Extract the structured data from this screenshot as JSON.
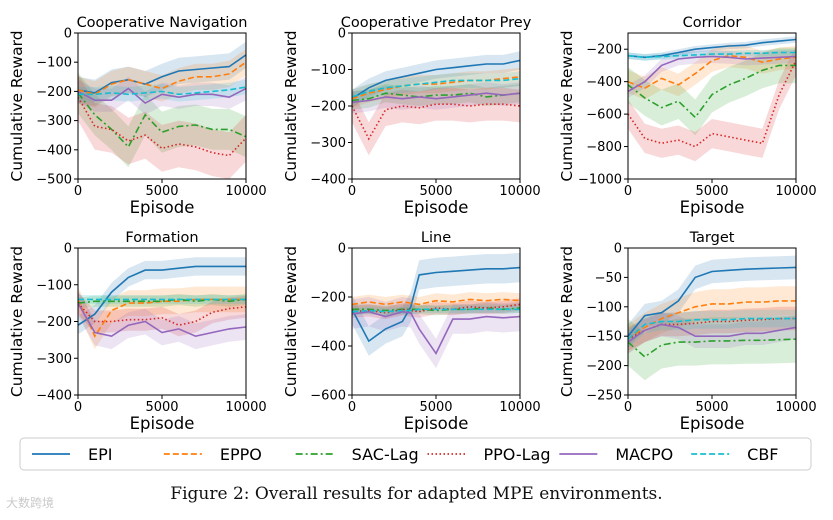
{
  "caption": "Figure 2: Overall results for adapted MPE environments.",
  "watermark": "大数跨境",
  "legend": {
    "entries": [
      {
        "name": "EPI",
        "color": "#1f77b4",
        "dash": "solid"
      },
      {
        "name": "EPPO",
        "color": "#ff7f0e",
        "dash": "dashed"
      },
      {
        "name": "SAC-Lag",
        "color": "#2ca02c",
        "dash": "dashdot"
      },
      {
        "name": "PPO-Lag",
        "color": "#d62728",
        "dash": "dotted"
      },
      {
        "name": "MACPO",
        "color": "#9467bd",
        "dash": "solid"
      },
      {
        "name": "CBF",
        "color": "#17becf",
        "dash": "dashed"
      }
    ]
  },
  "chart_data": [
    {
      "type": "line",
      "title": "Cooperative Navigation",
      "xlabel": "Episode",
      "ylabel": "Cumulative Reward",
      "xlim": [
        0,
        10000
      ],
      "ylim": [
        -500,
        0
      ],
      "xticks": [
        0,
        5000,
        10000
      ],
      "yticks": [
        -500,
        -400,
        -300,
        -200,
        -100,
        0
      ],
      "x": [
        0,
        1000,
        2000,
        3000,
        4000,
        5000,
        6000,
        7000,
        8000,
        9000,
        10000
      ],
      "series": [
        {
          "name": "EPI",
          "values": [
            -195,
            -205,
            -170,
            -160,
            -175,
            -150,
            -130,
            -125,
            -120,
            -115,
            -75
          ],
          "spread": 45
        },
        {
          "name": "EPPO",
          "values": [
            -195,
            -210,
            -175,
            -160,
            -175,
            -190,
            -165,
            -150,
            -150,
            -140,
            -100
          ],
          "spread": 45
        },
        {
          "name": "SAC-Lag",
          "values": [
            -205,
            -280,
            -330,
            -390,
            -280,
            -340,
            -320,
            -315,
            -330,
            -330,
            -355
          ],
          "spread": 70
        },
        {
          "name": "PPO-Lag",
          "values": [
            -220,
            -320,
            -330,
            -370,
            -350,
            -395,
            -380,
            -390,
            -410,
            -420,
            -360
          ],
          "spread": 80
        },
        {
          "name": "MACPO",
          "values": [
            -200,
            -230,
            -230,
            -190,
            -240,
            -210,
            -220,
            -210,
            -210,
            -220,
            -190
          ],
          "spread": 40
        },
        {
          "name": "CBF",
          "values": [
            -210,
            -210,
            -205,
            -210,
            -205,
            -200,
            -210,
            -205,
            -200,
            -195,
            -185
          ],
          "spread": 25
        }
      ]
    },
    {
      "type": "line",
      "title": "Cooperative Predator Prey",
      "xlabel": "Episode",
      "ylabel": "Cumulative Reward",
      "xlim": [
        0,
        10000
      ],
      "ylim": [
        -400,
        0
      ],
      "xticks": [
        0,
        5000,
        10000
      ],
      "yticks": [
        -400,
        -300,
        -200,
        -100,
        0
      ],
      "x": [
        0,
        1000,
        2000,
        3000,
        4000,
        5000,
        6000,
        7000,
        8000,
        9000,
        10000
      ],
      "series": [
        {
          "name": "EPI",
          "values": [
            -180,
            -150,
            -130,
            -120,
            -110,
            -100,
            -95,
            -90,
            -85,
            -85,
            -75
          ],
          "spread": 25
        },
        {
          "name": "EPPO",
          "values": [
            -180,
            -165,
            -155,
            -145,
            -140,
            -140,
            -135,
            -130,
            -130,
            -125,
            -120
          ],
          "spread": 25
        },
        {
          "name": "SAC-Lag",
          "values": [
            -185,
            -180,
            -165,
            -170,
            -175,
            -170,
            -170,
            -165,
            -175,
            -170,
            -165
          ],
          "spread": 25
        },
        {
          "name": "PPO-Lag",
          "values": [
            -200,
            -290,
            -210,
            -200,
            -205,
            -195,
            -195,
            -200,
            -195,
            -195,
            -200
          ],
          "spread": 45
        },
        {
          "name": "MACPO",
          "values": [
            -190,
            -185,
            -175,
            -180,
            -175,
            -180,
            -175,
            -170,
            -165,
            -170,
            -165
          ],
          "spread": 30
        },
        {
          "name": "CBF",
          "values": [
            -175,
            -160,
            -150,
            -145,
            -140,
            -135,
            -130,
            -130,
            -130,
            -130,
            -125
          ],
          "spread": 20
        }
      ]
    },
    {
      "type": "line",
      "title": "Corridor",
      "xlabel": "Episode",
      "ylabel": "Cumulative Reward",
      "xlim": [
        0,
        10000
      ],
      "ylim": [
        -1000,
        -100
      ],
      "xticks": [
        0,
        5000,
        10000
      ],
      "yticks": [
        -1000,
        -800,
        -600,
        -400,
        -200
      ],
      "x": [
        0,
        1000,
        2000,
        3000,
        4000,
        5000,
        6000,
        7000,
        8000,
        9000,
        10000
      ],
      "series": [
        {
          "name": "EPI",
          "values": [
            -240,
            -250,
            -240,
            -220,
            -200,
            -190,
            -180,
            -175,
            -160,
            -150,
            -140
          ],
          "spread": 20
        },
        {
          "name": "EPPO",
          "values": [
            -400,
            -440,
            -380,
            -420,
            -350,
            -270,
            -240,
            -250,
            -280,
            -260,
            -250
          ],
          "spread": 70
        },
        {
          "name": "SAC-Lag",
          "values": [
            -420,
            -500,
            -560,
            -520,
            -620,
            -480,
            -420,
            -380,
            -330,
            -300,
            -300
          ],
          "spread": 110
        },
        {
          "name": "PPO-Lag",
          "values": [
            -600,
            -750,
            -780,
            -760,
            -800,
            -720,
            -740,
            -760,
            -780,
            -480,
            -270
          ],
          "spread": 90
        },
        {
          "name": "MACPO",
          "values": [
            -460,
            -400,
            -300,
            -260,
            -250,
            -245,
            -250,
            -260,
            -255,
            -250,
            -245
          ],
          "spread": 40
        },
        {
          "name": "CBF",
          "values": [
            -240,
            -250,
            -245,
            -240,
            -235,
            -230,
            -230,
            -225,
            -225,
            -220,
            -220
          ],
          "spread": 20
        }
      ]
    },
    {
      "type": "line",
      "title": "Formation",
      "xlabel": "Episode",
      "ylabel": "Cumulative Reward",
      "xlim": [
        0,
        10000
      ],
      "ylim": [
        -400,
        0
      ],
      "xticks": [
        0,
        5000,
        10000
      ],
      "yticks": [
        -400,
        -300,
        -200,
        -100,
        0
      ],
      "x": [
        0,
        1000,
        2000,
        3000,
        4000,
        5000,
        6000,
        7000,
        8000,
        9000,
        10000
      ],
      "series": [
        {
          "name": "EPI",
          "values": [
            -210,
            -180,
            -120,
            -80,
            -60,
            -60,
            -55,
            -50,
            -50,
            -50,
            -50
          ],
          "spread": 25
        },
        {
          "name": "EPPO",
          "values": [
            -140,
            -240,
            -170,
            -150,
            -150,
            -145,
            -145,
            -140,
            -140,
            -140,
            -140
          ],
          "spread": 35
        },
        {
          "name": "SAC-Lag",
          "values": [
            -150,
            -145,
            -145,
            -145,
            -145,
            -145,
            -140,
            -145,
            -140,
            -145,
            -140
          ],
          "spread": 15
        },
        {
          "name": "PPO-Lag",
          "values": [
            -150,
            -200,
            -200,
            -195,
            -195,
            -190,
            -210,
            -200,
            -175,
            -165,
            -160
          ],
          "spread": 30
        },
        {
          "name": "MACPO",
          "values": [
            -150,
            -230,
            -240,
            -210,
            -200,
            -230,
            -220,
            -240,
            -230,
            -220,
            -215
          ],
          "spread": 35
        },
        {
          "name": "CBF",
          "values": [
            -140,
            -140,
            -140,
            -140,
            -140,
            -140,
            -140,
            -140,
            -140,
            -140,
            -140
          ],
          "spread": 12
        }
      ]
    },
    {
      "type": "line",
      "title": "Line",
      "xlabel": "Episode",
      "ylabel": "Cumulative Reward",
      "xlim": [
        0,
        10000
      ],
      "ylim": [
        -600,
        0
      ],
      "xticks": [
        0,
        5000,
        10000
      ],
      "yticks": [
        -600,
        -400,
        -200,
        0
      ],
      "x": [
        0,
        1000,
        2000,
        3000,
        3500,
        4000,
        5000,
        6000,
        7000,
        8000,
        9000,
        10000
      ],
      "series": [
        {
          "name": "EPI",
          "values": [
            -250,
            -380,
            -330,
            -300,
            -240,
            -110,
            -100,
            -95,
            -90,
            -85,
            -85,
            -80
          ],
          "spread": 60
        },
        {
          "name": "EPPO",
          "values": [
            -230,
            -220,
            -230,
            -220,
            -225,
            -230,
            -215,
            -220,
            -210,
            -215,
            -210,
            -215
          ],
          "spread": 30
        },
        {
          "name": "SAC-Lag",
          "values": [
            -250,
            -250,
            -255,
            -250,
            -250,
            -250,
            -255,
            -250,
            -250,
            -245,
            -250,
            -245
          ],
          "spread": 20
        },
        {
          "name": "PPO-Lag",
          "values": [
            -260,
            -255,
            -265,
            -250,
            -255,
            -260,
            -245,
            -250,
            -240,
            -245,
            -240,
            -230
          ],
          "spread": 25
        },
        {
          "name": "MACPO",
          "values": [
            -270,
            -260,
            -280,
            -260,
            -265,
            -330,
            -430,
            -290,
            -290,
            -280,
            -285,
            -280
          ],
          "spread": 60
        },
        {
          "name": "CBF",
          "values": [
            -260,
            -255,
            -260,
            -255,
            -255,
            -250,
            -250,
            -250,
            -250,
            -250,
            -250,
            -250
          ],
          "spread": 15
        }
      ]
    },
    {
      "type": "line",
      "title": "Target",
      "xlabel": "Episode",
      "ylabel": "Cumulative Reward",
      "xlim": [
        0,
        10000
      ],
      "ylim": [
        -250,
        0
      ],
      "xticks": [
        0,
        5000,
        10000
      ],
      "yticks": [
        -250,
        -200,
        -150,
        -100,
        -50,
        0
      ],
      "x": [
        0,
        1000,
        2000,
        3000,
        4000,
        5000,
        6000,
        7000,
        8000,
        9000,
        10000
      ],
      "series": [
        {
          "name": "EPI",
          "values": [
            -150,
            -115,
            -110,
            -90,
            -50,
            -40,
            -38,
            -36,
            -35,
            -34,
            -33
          ],
          "spread": 20
        },
        {
          "name": "EPPO",
          "values": [
            -155,
            -135,
            -120,
            -110,
            -100,
            -95,
            -95,
            -92,
            -92,
            -90,
            -90
          ],
          "spread": 25
        },
        {
          "name": "SAC-Lag",
          "values": [
            -160,
            -185,
            -165,
            -160,
            -160,
            -158,
            -158,
            -157,
            -157,
            -156,
            -155
          ],
          "spread": 40
        },
        {
          "name": "PPO-Lag",
          "values": [
            -155,
            -140,
            -130,
            -130,
            -128,
            -125,
            -125,
            -123,
            -122,
            -120,
            -120
          ],
          "spread": 20
        },
        {
          "name": "MACPO",
          "values": [
            -160,
            -140,
            -130,
            -135,
            -150,
            -150,
            -150,
            -145,
            -145,
            -140,
            -135
          ],
          "spread": 20
        },
        {
          "name": "CBF",
          "values": [
            -155,
            -130,
            -125,
            -125,
            -122,
            -122,
            -122,
            -120,
            -120,
            -120,
            -120
          ],
          "spread": 15
        }
      ]
    }
  ]
}
